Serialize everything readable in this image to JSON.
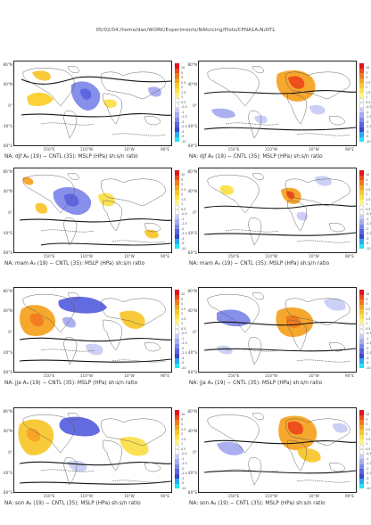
{
  "header": {
    "path": "05/02/04:/home/dan/WORK/Experiments/NAforcing/Plots/CPNA1A₄N₂NTL"
  },
  "axes": {
    "lat_labels": [
      "80°N",
      "40°N",
      "0°",
      "40°S",
      "80°S"
    ],
    "lon_labels": [
      "150°E",
      "110°W",
      "10°W",
      "90°E"
    ]
  },
  "colorbar": {
    "labels": [
      "10",
      "5",
      "3",
      "2.5",
      "2",
      "1.5",
      "1",
      "0.5",
      "-0.5",
      "-1",
      "-1.5",
      "-2",
      "-2.5",
      "-3",
      "-5",
      "-10"
    ],
    "colors": [
      "#e0151a",
      "#ec4a1c",
      "#f27a1f",
      "#f5a323",
      "#f8c72e",
      "#fbe04c",
      "#fdf08a",
      "#ffffff",
      "#ffffff",
      "#c9cdf5",
      "#a6acef",
      "#8089e8",
      "#5b63de",
      "#3c46cf",
      "#2aa9f0",
      "#23e5f5"
    ]
  },
  "panels": [
    {
      "caption": "NA: djf A₄ (19) − CNTL (35): MSLP (HPa) sh:s/n ratio",
      "season": "djf"
    },
    {
      "caption": "NA: djf A₄ (19) − CNTL (35): MSLP (HPa) sh:s/n ratio",
      "season": "djf"
    },
    {
      "caption": "NA: mam A₄ (19) − CNTL (35): MSLP (HPa) sh:s/n ratio",
      "season": "mam"
    },
    {
      "caption": "NA: mam A₄ (19) − CNTL (35): MSLP (HPa) sh:s/n ratio",
      "season": "mam"
    },
    {
      "caption": "NA: jja A₄ (19) − CNTL (35): MSLP (HPa) sh:s/n ratio",
      "season": "jja"
    },
    {
      "caption": "NA: jja A₄ (19) − CNTL (35): MSLP (HPa) sh:s/n ratio",
      "season": "jja"
    },
    {
      "caption": "NA: son A₄ (19) − CNTL (35): MSLP (HPa) sh:s/n ratio",
      "season": "son"
    },
    {
      "caption": "NA: son A₄ (19) − CNTL (35): MSLP (HPa) sh:s/n ratio",
      "season": "son"
    }
  ]
}
